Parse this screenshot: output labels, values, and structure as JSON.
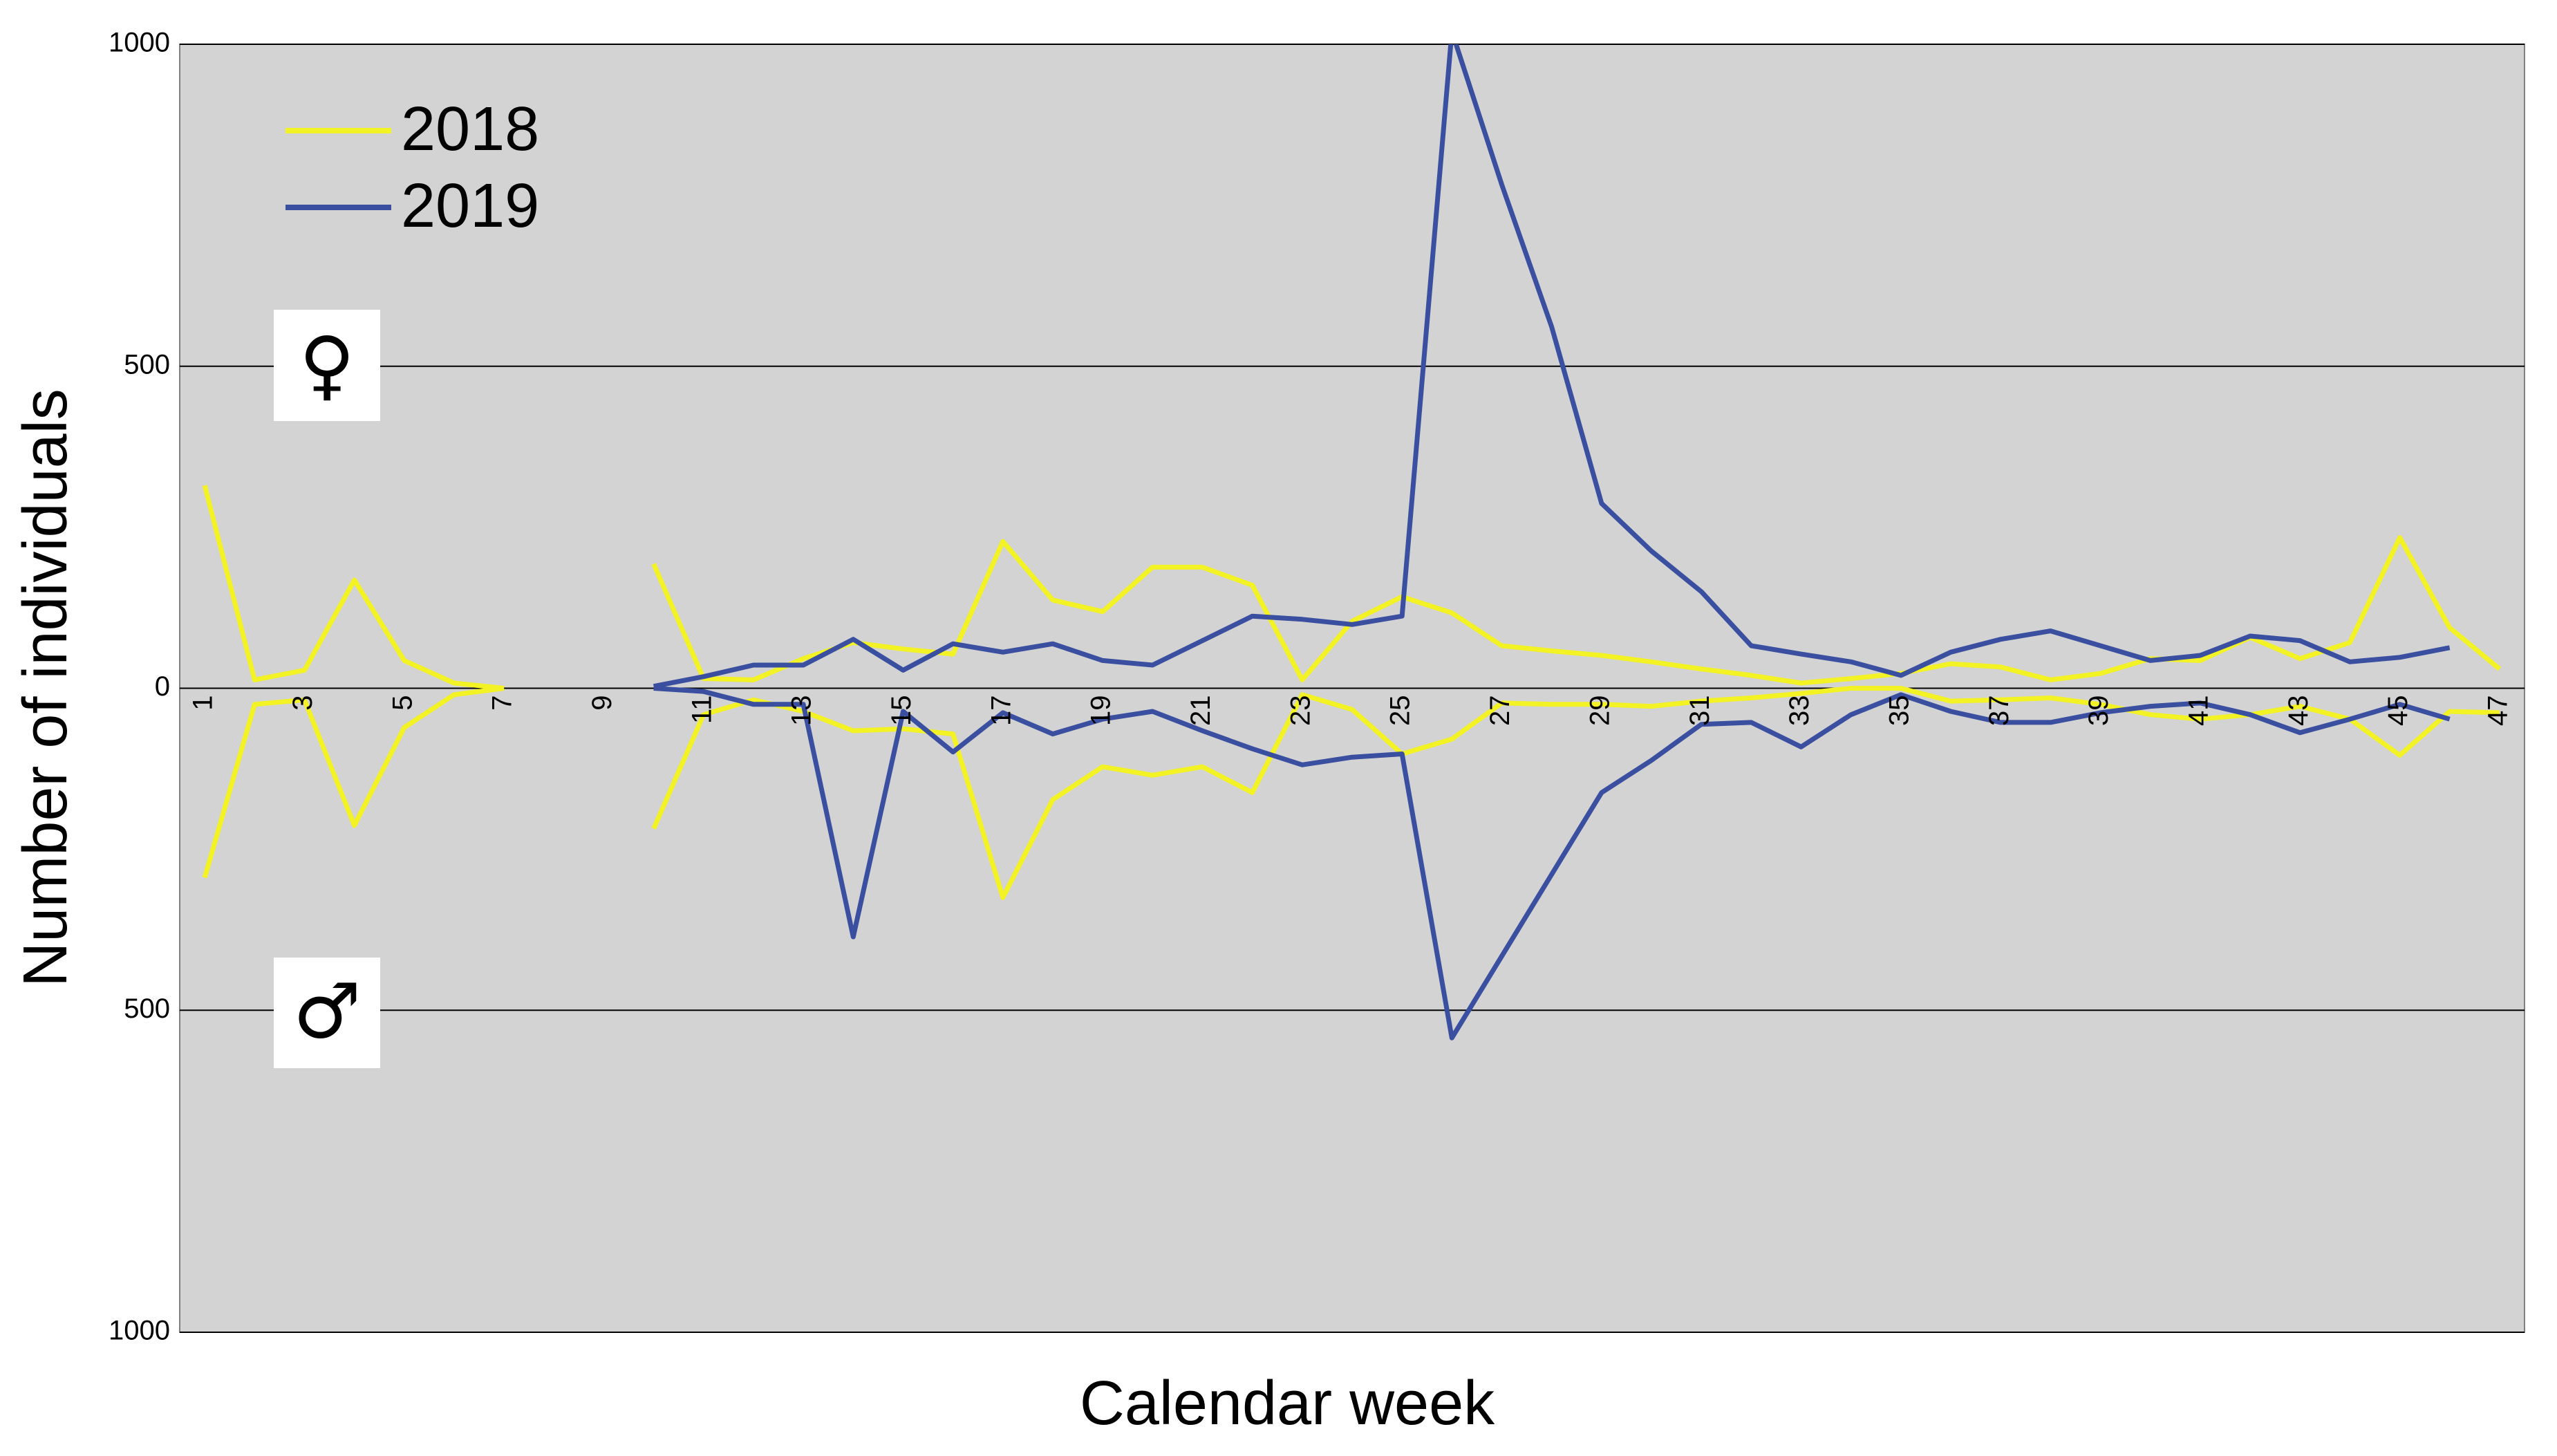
{
  "chart_data": {
    "type": "line",
    "x_label": "Calendar week",
    "y_label": "Number of individuals",
    "annotations": [
      "♀",
      "♂"
    ],
    "x": [
      1,
      2,
      3,
      4,
      5,
      6,
      7,
      8,
      9,
      10,
      11,
      12,
      13,
      14,
      15,
      16,
      17,
      18,
      19,
      20,
      21,
      22,
      23,
      24,
      25,
      26,
      27,
      28,
      29,
      30,
      31,
      32,
      33,
      34,
      35,
      36,
      37,
      38,
      39,
      40,
      41,
      42,
      43,
      44,
      45,
      46,
      47
    ],
    "xlim": [
      0.5,
      47.5
    ],
    "xticks": [
      1,
      3,
      5,
      7,
      9,
      11,
      13,
      15,
      17,
      19,
      21,
      23,
      25,
      27,
      29,
      31,
      33,
      35,
      37,
      39,
      41,
      43,
      45,
      47
    ],
    "ylim": [
      -1000,
      1000
    ],
    "yticks": [
      1000,
      {
        "value": 500,
        "label": "500"
      },
      0,
      {
        "value": -500,
        "label": "500"
      },
      {
        "value": -1000,
        "label": "1000"
      }
    ],
    "grid": true,
    "legend": "top-left",
    "series": [
      {
        "name": "2018",
        "color": "#f2f224",
        "values": [
          315,
          13,
          28,
          168,
          43,
          8,
          0,
          null,
          null,
          193,
          15,
          13,
          46,
          71,
          61,
          53,
          228,
          137,
          119,
          188,
          188,
          160,
          13,
          104,
          142,
          117,
          66,
          58,
          51,
          41,
          30,
          20,
          8,
          15,
          23,
          38,
          33,
          13,
          23,
          46,
          43,
          79,
          46,
          71,
          234,
          94,
          30
        ],
        "male_values": [
          -294,
          -25,
          -18,
          -213,
          -61,
          -10,
          0,
          null,
          null,
          -218,
          -41,
          -18,
          -36,
          -66,
          -63,
          -71,
          -325,
          -173,
          -122,
          -135,
          -122,
          -162,
          -10,
          -33,
          -102,
          -79,
          -23,
          -25,
          -25,
          -28,
          -20,
          -15,
          -8,
          0,
          0,
          -20,
          -18,
          -15,
          -25,
          -41,
          -48,
          -41,
          -28,
          -48,
          -104,
          -36,
          -38
        ]
      },
      {
        "name": "2019",
        "color": "#3a4fa0",
        "values": [
          null,
          null,
          null,
          null,
          null,
          null,
          null,
          null,
          null,
          3,
          18,
          36,
          36,
          76,
          28,
          69,
          56,
          69,
          43,
          36,
          74,
          112,
          107,
          99,
          112,
          1020,
          782,
          561,
          287,
          213,
          150,
          66,
          53,
          41,
          20,
          56,
          76,
          89,
          66,
          43,
          51,
          81,
          74,
          41,
          48,
          63,
          null
        ],
        "male_values": [
          null,
          null,
          null,
          null,
          null,
          null,
          null,
          null,
          null,
          0,
          -5,
          -25,
          -25,
          -386,
          -36,
          -99,
          -38,
          -71,
          -48,
          -36,
          -66,
          -94,
          -119,
          -107,
          -102,
          -543,
          -416,
          -289,
          -162,
          -112,
          -56,
          -53,
          -91,
          -41,
          -10,
          -36,
          -53,
          -53,
          -38,
          -28,
          -23,
          -41,
          -69,
          -48,
          -25,
          -48,
          null
        ]
      }
    ]
  }
}
